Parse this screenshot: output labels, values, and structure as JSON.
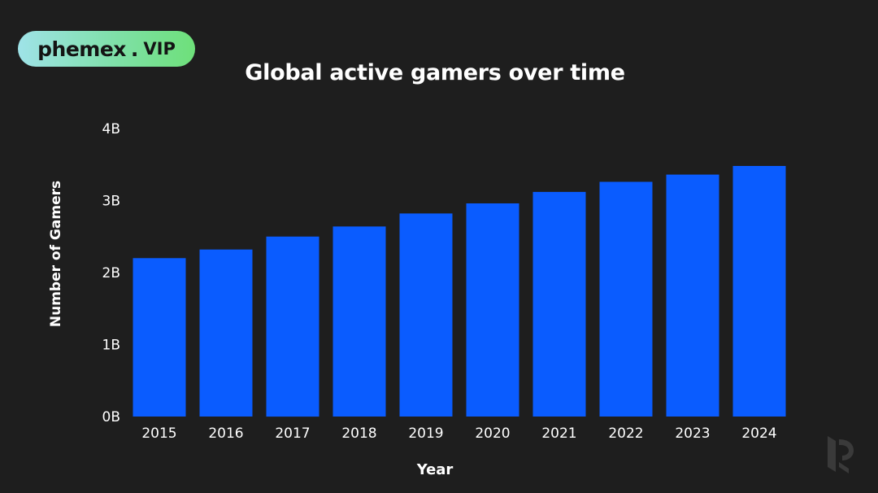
{
  "brand": {
    "name": "phemex",
    "separator": ".",
    "tier": "VIP"
  },
  "chart_data": {
    "type": "bar",
    "title": "Global active gamers over time",
    "xlabel": "Year",
    "ylabel": "Number of Gamers",
    "categories": [
      "2015",
      "2016",
      "2017",
      "2018",
      "2019",
      "2020",
      "2021",
      "2022",
      "2023",
      "2024"
    ],
    "values": [
      2.2,
      2.32,
      2.5,
      2.64,
      2.82,
      2.96,
      3.12,
      3.26,
      3.36,
      3.48
    ],
    "value_unit": "B",
    "ylim": [
      0,
      4
    ],
    "yticks": [
      "0B",
      "1B",
      "2B",
      "3B",
      "4B"
    ],
    "grid": false,
    "legend": "none",
    "bar_color": "#0a5cff",
    "background": "#1e1e1e"
  }
}
